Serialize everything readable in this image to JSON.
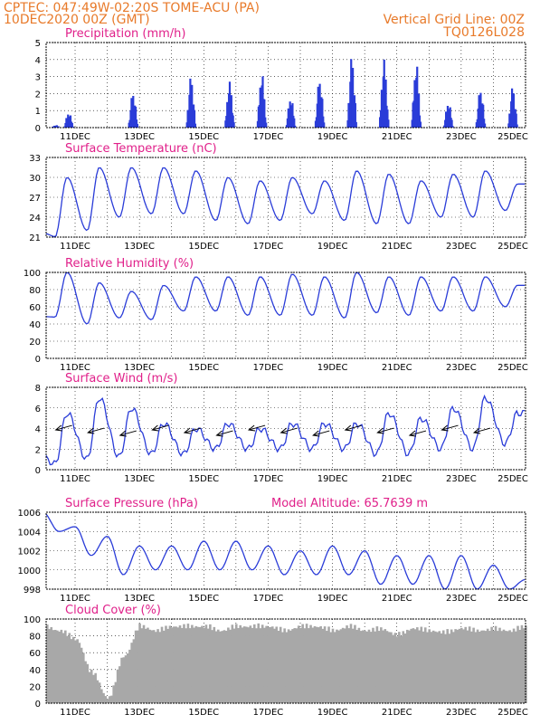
{
  "header": {
    "line1_left": "CPTEC:   047:49W-02:20S   TOME-ACU (PA)",
    "line2_left": "10DEC2020 00Z (GMT)",
    "line1_right": "Vertical Grid Line: 00Z",
    "line2_right": "TQ0126L028"
  },
  "colors": {
    "header": "#e87a2a",
    "title": "#e0208a",
    "line": "#2a3cd8",
    "cloud": "#a8a8a8",
    "arrow": "#000000"
  },
  "chart_data": [
    {
      "type": "bar",
      "title": "Precipitation (mm/h)",
      "x_tick_labels": [
        "11DEC",
        "13DEC",
        "15DEC",
        "17DEC",
        "19DEC",
        "21DEC",
        "23DEC",
        "25DEC"
      ],
      "ylim": [
        0,
        5
      ],
      "y_ticks": [
        0,
        1,
        2,
        3,
        4,
        5
      ],
      "values": [
        [
          10.4,
          0.15
        ],
        [
          10.8,
          0.9
        ],
        [
          12.8,
          2.1
        ],
        [
          14.6,
          3.0
        ],
        [
          15.8,
          2.7
        ],
        [
          16.8,
          3.2
        ],
        [
          17.7,
          1.8
        ],
        [
          18.6,
          2.9
        ],
        [
          19.6,
          4.2
        ],
        [
          20.6,
          4.0
        ],
        [
          21.6,
          3.8
        ],
        [
          22.6,
          1.5
        ],
        [
          23.6,
          2.3
        ],
        [
          24.6,
          2.4
        ]
      ]
    },
    {
      "type": "line",
      "title": "Surface Temperature (nC)",
      "x_tick_labels": [
        "11DEC",
        "13DEC",
        "15DEC",
        "17DEC",
        "19DEC",
        "21DEC",
        "23DEC",
        "25DEC"
      ],
      "ylim": [
        21,
        33
      ],
      "y_ticks": [
        21,
        24,
        27,
        30,
        33
      ],
      "peaks": [
        30.0,
        31.5,
        31.5,
        31.5,
        31.0,
        30.0,
        29.5,
        30.0,
        29.5,
        31.0,
        30.5,
        29.5,
        30.5,
        31.0,
        29.0
      ],
      "troughs": [
        21.0,
        22.0,
        24.0,
        24.5,
        24.5,
        23.5,
        23.0,
        23.5,
        24.5,
        23.5,
        23.0,
        23.0,
        24.0,
        24.0,
        25.0
      ]
    },
    {
      "type": "line",
      "title": "Relative Humidity (%)",
      "x_tick_labels": [
        "11DEC",
        "13DEC",
        "15DEC",
        "17DEC",
        "19DEC",
        "21DEC",
        "23DEC",
        "25DEC"
      ],
      "ylim": [
        0,
        100
      ],
      "y_ticks": [
        0,
        20,
        40,
        60,
        80,
        100
      ],
      "peaks": [
        100,
        88,
        78,
        85,
        95,
        95,
        95,
        98,
        95,
        100,
        95,
        95,
        95,
        95,
        85
      ],
      "troughs": [
        48,
        40,
        47,
        45,
        55,
        55,
        50,
        50,
        50,
        47,
        53,
        50,
        55,
        55,
        60
      ]
    },
    {
      "type": "line",
      "title": "Surface Wind (m/s)",
      "x_tick_labels": [
        "11DEC",
        "13DEC",
        "15DEC",
        "17DEC",
        "19DEC",
        "21DEC",
        "23DEC",
        "25DEC"
      ],
      "ylim": [
        0,
        8
      ],
      "y_ticks": [
        0,
        2,
        4,
        6,
        8
      ],
      "peaks": [
        5.5,
        7.0,
        6.0,
        4.5,
        4.0,
        4.5,
        4.0,
        4.5,
        4.5,
        4.5,
        5.5,
        5.0,
        6.0,
        7.0,
        5.5
      ],
      "troughs": [
        0.5,
        1.0,
        1.2,
        1.5,
        1.5,
        2.0,
        2.0,
        2.0,
        2.0,
        2.0,
        1.5,
        1.5,
        2.0,
        2.0,
        2.5
      ],
      "vector_note": "wind direction arrows"
    },
    {
      "type": "line",
      "title": "Surface Pressure (hPa)",
      "annotation": "Model Altitude: 65.7639 m",
      "x_tick_labels": [
        "11DEC",
        "13DEC",
        "15DEC",
        "17DEC",
        "19DEC",
        "21DEC",
        "23DEC",
        "25DEC"
      ],
      "ylim": [
        998,
        1006
      ],
      "y_ticks": [
        998,
        1000,
        1002,
        1004,
        1006
      ],
      "values_half_daily": [
        1006.0,
        1004.0,
        1004.5,
        1001.5,
        1003.5,
        999.5,
        1002.5,
        1000.0,
        1002.5,
        1000.0,
        1003.0,
        1000.0,
        1003.0,
        1000.0,
        1002.5,
        999.5,
        1002.0,
        999.5,
        1002.5,
        999.5,
        1002.0,
        998.5,
        1001.5,
        998.5,
        1001.5,
        998.0,
        1001.5,
        998.0,
        1000.5,
        998.0,
        999.0
      ]
    },
    {
      "type": "area",
      "title": "Cloud Cover (%)",
      "x_tick_labels": [
        "11DEC",
        "13DEC",
        "15DEC",
        "17DEC",
        "19DEC",
        "21DEC",
        "23DEC",
        "25DEC"
      ],
      "ylim": [
        0,
        100
      ],
      "y_ticks": [
        0,
        20,
        40,
        60,
        80,
        100
      ],
      "values_half_daily": [
        95,
        90,
        80,
        40,
        10,
        60,
        95,
        90,
        95,
        95,
        95,
        90,
        95,
        95,
        95,
        90,
        95,
        95,
        90,
        95,
        90,
        92,
        85,
        93,
        90,
        88,
        93,
        90,
        92,
        90,
        95
      ]
    }
  ]
}
